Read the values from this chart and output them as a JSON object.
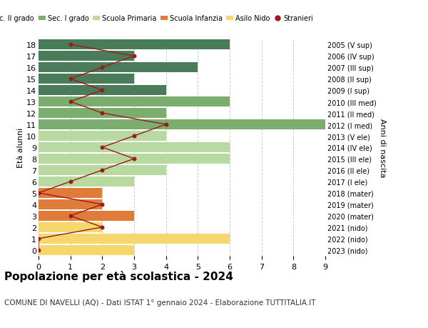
{
  "ages": [
    18,
    17,
    16,
    15,
    14,
    13,
    12,
    11,
    10,
    9,
    8,
    7,
    6,
    5,
    4,
    3,
    2,
    1,
    0
  ],
  "years": [
    "2005 (V sup)",
    "2006 (IV sup)",
    "2007 (III sup)",
    "2008 (II sup)",
    "2009 (I sup)",
    "2010 (III med)",
    "2011 (II med)",
    "2012 (I med)",
    "2013 (V ele)",
    "2014 (IV ele)",
    "2015 (III ele)",
    "2016 (II ele)",
    "2017 (I ele)",
    "2018 (mater)",
    "2019 (mater)",
    "2020 (mater)",
    "2021 (nido)",
    "2022 (nido)",
    "2023 (nido)"
  ],
  "bar_values": [
    6,
    3,
    5,
    3,
    4,
    6,
    4,
    9,
    4,
    6,
    6,
    4,
    3,
    2,
    2,
    3,
    2,
    6,
    3
  ],
  "bar_colors": [
    "#4a7c59",
    "#4a7c59",
    "#4a7c59",
    "#4a7c59",
    "#4a7c59",
    "#7aad6e",
    "#7aad6e",
    "#7aad6e",
    "#b8d9a0",
    "#b8d9a0",
    "#b8d9a0",
    "#b8d9a0",
    "#b8d9a0",
    "#e07b3a",
    "#e07b3a",
    "#e07b3a",
    "#f5d76e",
    "#f5d76e",
    "#f5d76e"
  ],
  "stranieri_values": [
    1,
    3,
    2,
    1,
    2,
    1,
    2,
    4,
    3,
    2,
    3,
    2,
    1,
    0,
    2,
    1,
    2,
    0,
    0
  ],
  "stranieri_color": "#9b1a1a",
  "legend_labels": [
    "Sec. II grado",
    "Sec. I grado",
    "Scuola Primaria",
    "Scuola Infanzia",
    "Asilo Nido",
    "Stranieri"
  ],
  "legend_colors": [
    "#4a7c59",
    "#7aad6e",
    "#b8d9a0",
    "#e07b3a",
    "#f5d76e",
    "#9b1a1a"
  ],
  "ylabel_left": "Età alunni",
  "ylabel_right": "Anni di nascita",
  "title": "Popolazione per età scolastica - 2024",
  "subtitle": "COMUNE DI NAVELLI (AQ) - Dati ISTAT 1° gennaio 2024 - Elaborazione TUTTITALIA.IT",
  "xlim": [
    0,
    9
  ],
  "background_color": "#ffffff",
  "grid_color": "#cccccc"
}
